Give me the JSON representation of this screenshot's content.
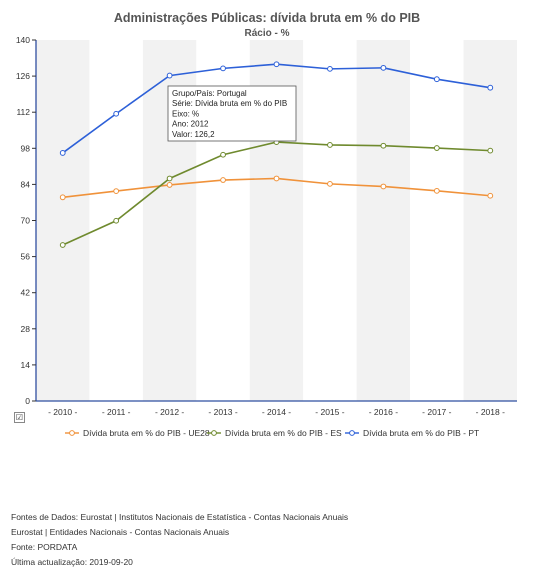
{
  "header": {
    "title": "Administrações Públicas: dívida bruta em % do PIB",
    "subtitle": "Rácio - %"
  },
  "tooltip": {
    "lines": [
      "Grupo/País: Portugal",
      "Série: Dívida bruta em % do PIB",
      "Eixo: %",
      "Ano: 2012",
      "Valor: 126,2"
    ]
  },
  "checkbox": {
    "mark": "☑"
  },
  "footer": {
    "lines": [
      "Fontes de Dados: Eurostat | Institutos Nacionais de Estatística - Contas Nacionais Anuais",
      "Eurostat | Entidades Nacionais - Contas Nacionais Anuais",
      "Fonte: PORDATA",
      "Última actualização: 2019-09-20"
    ]
  },
  "chart_data": {
    "type": "line",
    "title": "Administrações Públicas: dívida bruta em % do PIB",
    "subtitle": "Rácio - %",
    "categories": [
      "- 2010 -",
      "- 2011 -",
      "- 2012 -",
      "- 2013 -",
      "- 2014 -",
      "- 2015 -",
      "- 2016 -",
      "- 2017 -",
      "- 2018 -"
    ],
    "ylim": [
      0,
      140
    ],
    "yticks": [
      0,
      14,
      28,
      42,
      56,
      70,
      84,
      98,
      112,
      126,
      140
    ],
    "grid": "vertical-bands",
    "legend_position": "bottom",
    "series": [
      {
        "name": "Dívida bruta em % do PIB - UE28",
        "color": "#f0923a",
        "values": [
          79.0,
          81.4,
          83.8,
          85.7,
          86.3,
          84.2,
          83.2,
          81.5,
          79.6
        ]
      },
      {
        "name": "Dívida bruta em % do PIB - ES",
        "color": "#6f8a2e",
        "values": [
          60.5,
          69.9,
          86.3,
          95.5,
          100.4,
          99.3,
          99.0,
          98.1,
          97.1
        ]
      },
      {
        "name": "Dívida bruta em % do PIB - PT",
        "color": "#2d60d8",
        "values": [
          96.2,
          111.4,
          126.2,
          129.0,
          130.6,
          128.8,
          129.2,
          124.8,
          121.5
        ]
      }
    ]
  }
}
